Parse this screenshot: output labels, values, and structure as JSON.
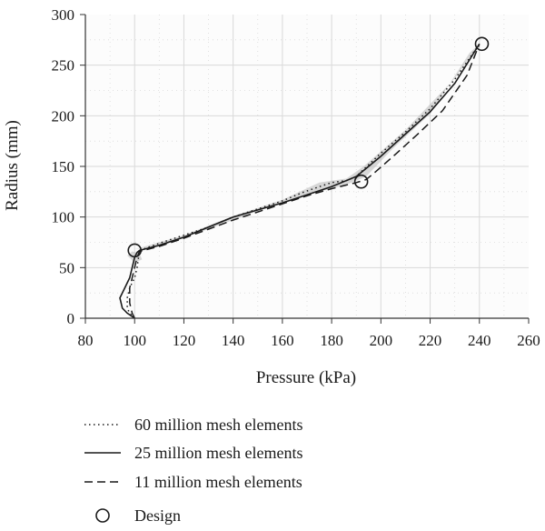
{
  "chart_data": {
    "type": "line",
    "title": "",
    "xlabel": "Pressure (kPa)",
    "ylabel": "Radius (mm)",
    "xlim": [
      80,
      260
    ],
    "ylim": [
      0,
      300
    ],
    "xticks": [
      80,
      100,
      120,
      140,
      160,
      180,
      200,
      220,
      240,
      260
    ],
    "yticks": [
      0,
      50,
      100,
      150,
      200,
      250,
      300
    ],
    "grid": true,
    "legend_position": "bottom",
    "series": [
      {
        "name": "60 million mesh elements",
        "style": "dotted",
        "x": [
          100,
          98,
          97,
          97,
          98,
          100,
          101,
          102,
          110,
          120,
          130,
          140,
          150,
          160,
          168,
          175,
          180,
          186,
          190,
          193,
          200,
          210,
          220,
          230,
          240
        ],
        "y": [
          0,
          5,
          10,
          20,
          30,
          40,
          50,
          67,
          74,
          82,
          90,
          100,
          108,
          116,
          124,
          130,
          134,
          136,
          140,
          147,
          163,
          184,
          207,
          236,
          271
        ]
      },
      {
        "name": "25 million mesh elements",
        "style": "solid",
        "x": [
          100,
          97,
          95,
          94,
          96,
          98,
          99,
          100,
          101,
          102,
          110,
          120,
          130,
          140,
          150,
          160,
          170,
          180,
          190,
          194,
          200,
          210,
          220,
          230,
          240
        ],
        "y": [
          0,
          5,
          10,
          20,
          30,
          40,
          50,
          60,
          65,
          67,
          72,
          80,
          90,
          100,
          107,
          114,
          122,
          130,
          140,
          148,
          160,
          182,
          204,
          232,
          271
        ]
      },
      {
        "name": "11 million mesh elements",
        "style": "dashed",
        "x": [
          100,
          99,
          98,
          98,
          99,
          100,
          101,
          102,
          110,
          120,
          130,
          140,
          150,
          160,
          170,
          180,
          190,
          194,
          198,
          205,
          215,
          225,
          235,
          240
        ],
        "y": [
          0,
          5,
          15,
          30,
          40,
          50,
          60,
          66,
          71,
          79,
          88,
          97,
          105,
          113,
          121,
          128,
          134,
          137,
          145,
          160,
          182,
          205,
          240,
          271
        ]
      }
    ],
    "design_points": {
      "name": "Design",
      "x": [
        100,
        192,
        241
      ],
      "y": [
        67,
        135,
        271
      ]
    },
    "colors": {
      "lines": "#1a1a1a",
      "grid": "#d9d9d9",
      "band": "#b8b8b8"
    }
  }
}
